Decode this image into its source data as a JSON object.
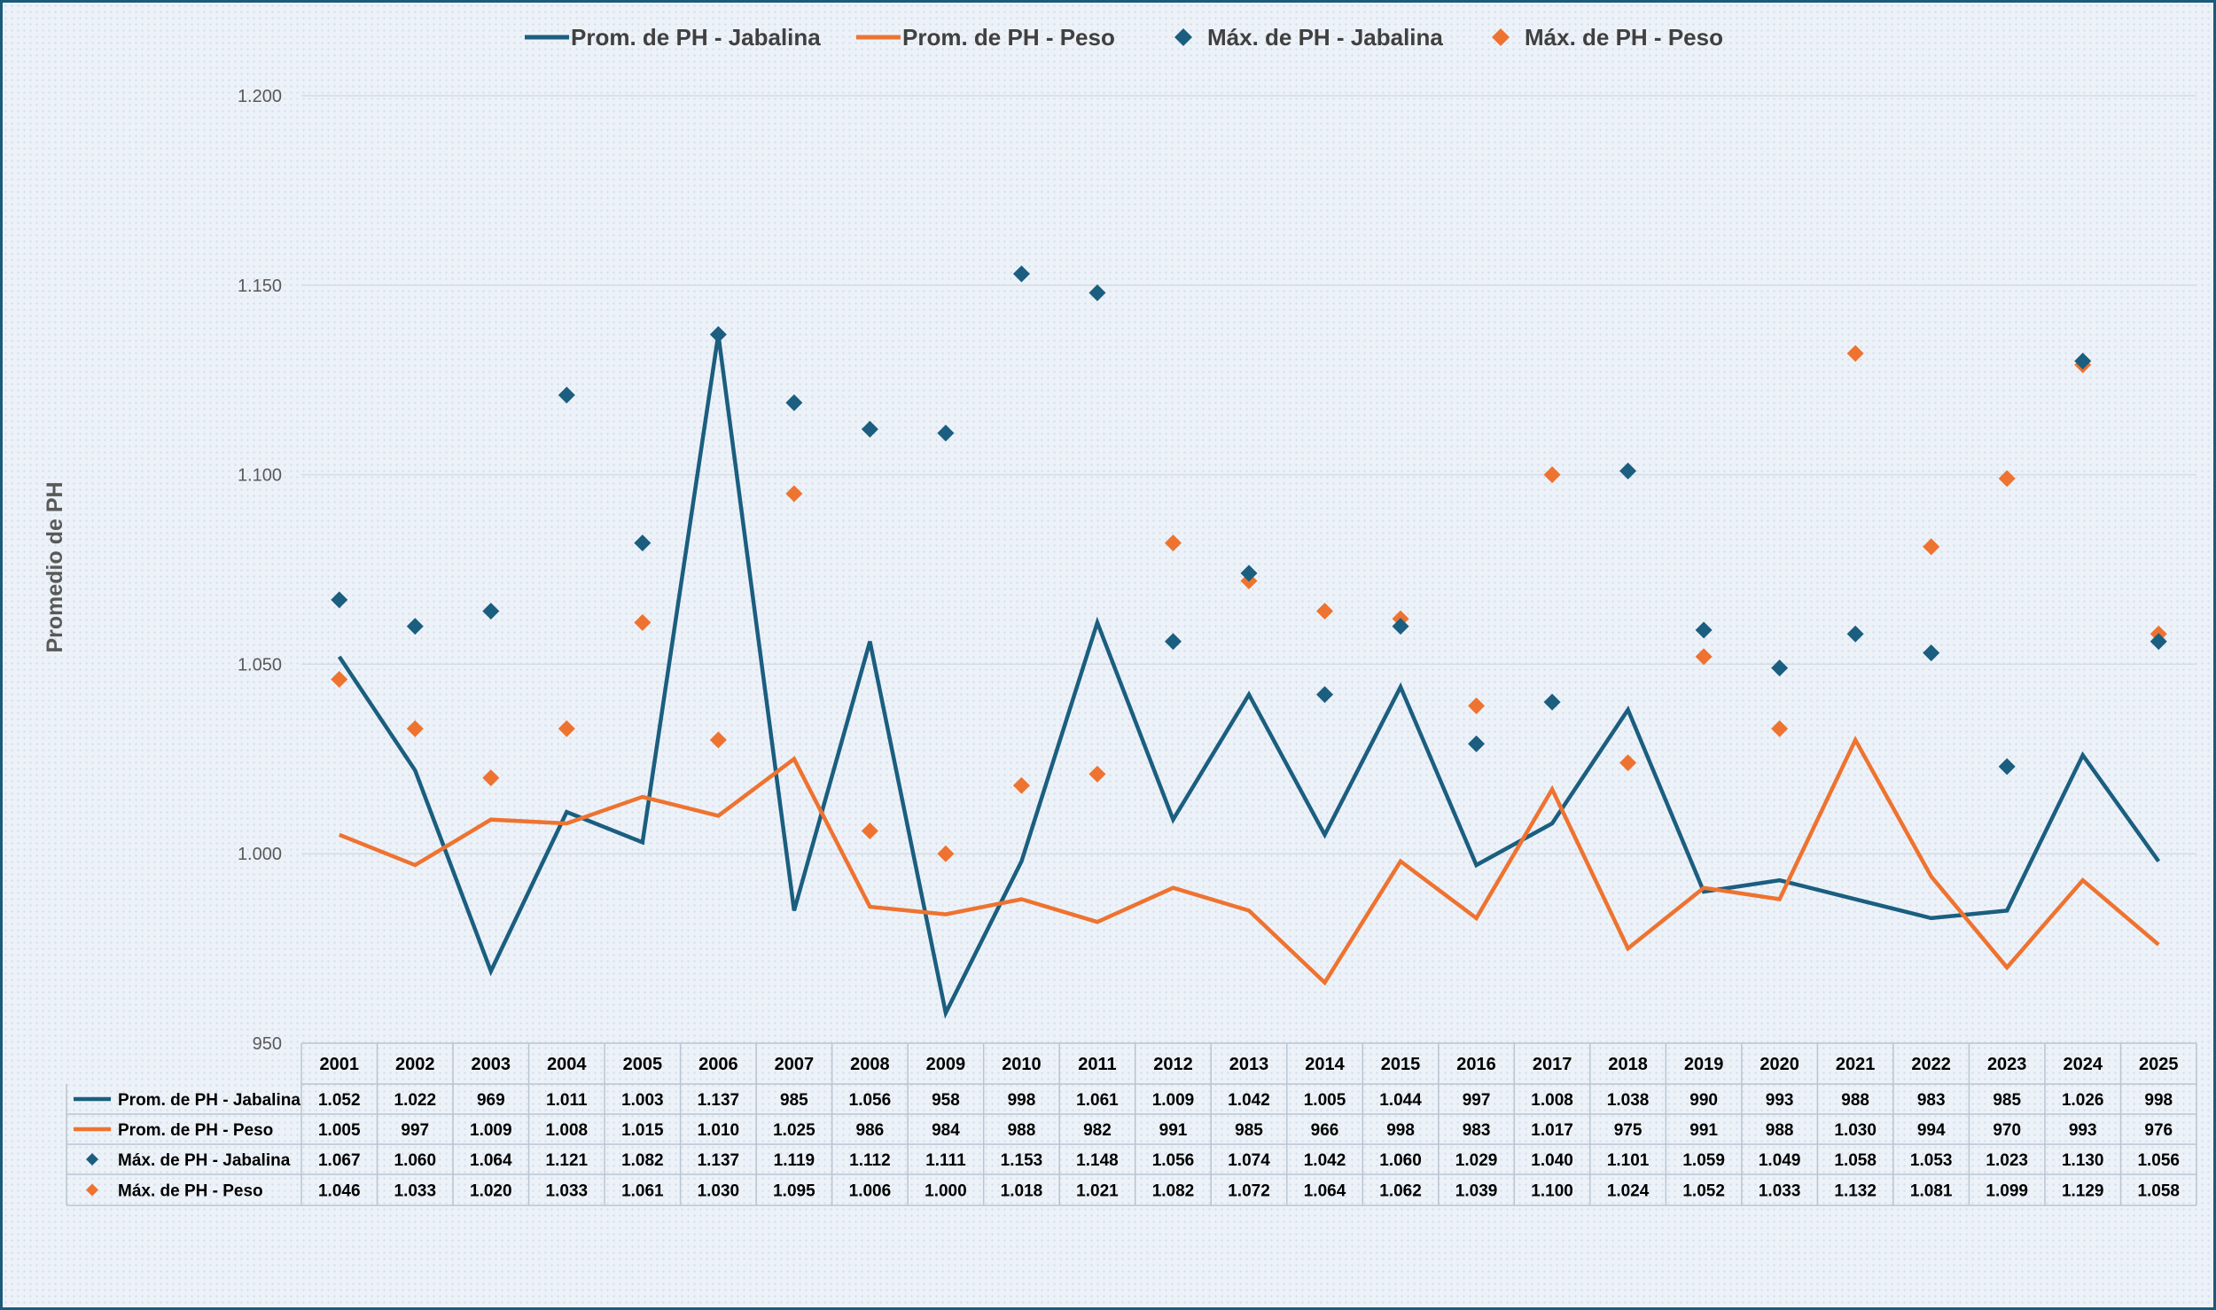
{
  "chart_data": {
    "type": "line",
    "title": "",
    "xlabel": "",
    "ylabel": "Promedio de PH",
    "ylim": [
      950,
      1200
    ],
    "yticks": [
      950,
      1000,
      1050,
      1100,
      1150,
      1200
    ],
    "ytick_labels": [
      "950",
      "1.000",
      "1.050",
      "1.100",
      "1.150",
      "1.200"
    ],
    "grid": true,
    "legend_position": "top",
    "data_table": true,
    "categories": [
      "2001",
      "2002",
      "2003",
      "2004",
      "2005",
      "2006",
      "2007",
      "2008",
      "2009",
      "2010",
      "2011",
      "2012",
      "2013",
      "2014",
      "2015",
      "2016",
      "2017",
      "2018",
      "2019",
      "2020",
      "2021",
      "2022",
      "2023",
      "2024",
      "2025"
    ],
    "series": [
      {
        "name": "Prom. de PH - Jabalina",
        "kind": "line",
        "color": "#1b5e7f",
        "values": [
          1052,
          1022,
          969,
          1011,
          1003,
          1137,
          985,
          1056,
          958,
          998,
          1061,
          1009,
          1042,
          1005,
          1044,
          997,
          1008,
          1038,
          990,
          993,
          988,
          983,
          985,
          1026,
          998
        ]
      },
      {
        "name": "Prom. de PH - Peso",
        "kind": "line",
        "color": "#ee7330",
        "values": [
          1005,
          997,
          1009,
          1008,
          1015,
          1010,
          1025,
          986,
          984,
          988,
          982,
          991,
          985,
          966,
          998,
          983,
          1017,
          975,
          991,
          988,
          1030,
          994,
          970,
          993,
          976
        ]
      },
      {
        "name": "Máx. de PH - Jabalina",
        "kind": "marker",
        "color": "#1b5e7f",
        "values": [
          1067,
          1060,
          1064,
          1121,
          1082,
          1137,
          1119,
          1112,
          1111,
          1153,
          1148,
          1056,
          1074,
          1042,
          1060,
          1029,
          1040,
          1101,
          1059,
          1049,
          1058,
          1053,
          1023,
          1130,
          1056
        ]
      },
      {
        "name": "Máx. de PH - Peso",
        "kind": "marker",
        "color": "#ee7330",
        "values": [
          1046,
          1033,
          1020,
          1033,
          1061,
          1030,
          1095,
          1006,
          1000,
          1018,
          1021,
          1082,
          1072,
          1064,
          1062,
          1039,
          1100,
          1024,
          1052,
          1033,
          1132,
          1081,
          1099,
          1129,
          1058
        ]
      }
    ]
  }
}
